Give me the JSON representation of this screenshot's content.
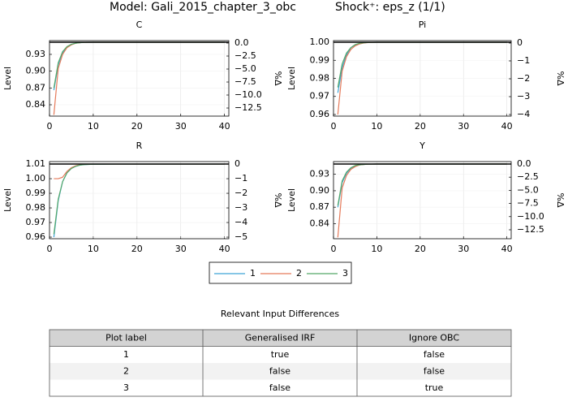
{
  "header": {
    "model": "Model: Gali_2015_chapter_3_obc",
    "shock": "Shock⁺: eps_z  (1/1)"
  },
  "legend": [
    {
      "name": "1",
      "color": "#3da4d8"
    },
    {
      "name": "2",
      "color": "#e57a5a"
    },
    {
      "name": "3",
      "color": "#55a868"
    }
  ],
  "chart_data": [
    {
      "type": "line",
      "title": "C",
      "ylabel": "Level",
      "y2label": "%Δ",
      "x": [
        1,
        2,
        3,
        4,
        5,
        6,
        7,
        8,
        10,
        15,
        20,
        30,
        40
      ],
      "xlim": [
        0,
        41
      ],
      "xticks": [
        0,
        10,
        20,
        30,
        40
      ],
      "ylim": [
        0.8197,
        0.9546
      ],
      "yticks": [
        0.84,
        0.87,
        {
          "value": 0.9,
          "label": "0.90"
        },
        0.93
      ],
      "y2lim": [
        -14.06,
        0.47
      ],
      "y2ticks": [
        {
          "value": 0,
          "label": "0.0"
        },
        {
          "value": -2.5,
          "label": "−2.5"
        },
        {
          "value": -5,
          "label": "−5.0"
        },
        {
          "value": -7.5,
          "label": "−7.5"
        },
        {
          "value": -10,
          "label": "−10.0"
        },
        {
          "value": -12.5,
          "label": "−12.5"
        }
      ],
      "steady_state": 0.9517,
      "grid": true,
      "series": [
        {
          "values": [
            0.866,
            0.912,
            0.933,
            0.943,
            0.948,
            0.95,
            0.951,
            0.9515,
            0.9517,
            0.9517,
            0.9517,
            0.9517,
            0.9517
          ]
        },
        {
          "values": [
            0.822,
            0.905,
            0.93,
            0.942,
            0.947,
            0.95,
            0.951,
            0.9515,
            0.9517,
            0.9517,
            0.9517,
            0.9517,
            0.9517
          ]
        },
        {
          "values": [
            0.87,
            0.915,
            0.935,
            0.944,
            0.948,
            0.95,
            0.951,
            0.9515,
            0.9517,
            0.9517,
            0.9517,
            0.9517,
            0.9517
          ]
        }
      ]
    },
    {
      "type": "line",
      "title": "Pi",
      "ylabel": "Level",
      "y2label": "%Δ",
      "x": [
        1,
        2,
        3,
        4,
        5,
        6,
        7,
        8,
        10,
        15,
        20,
        30,
        40
      ],
      "xlim": [
        0,
        41
      ],
      "xticks": [
        0,
        10,
        20,
        30,
        40
      ],
      "ylim": [
        0.9591,
        1.0009
      ],
      "yticks": [
        0.96,
        0.97,
        0.98,
        0.99,
        {
          "value": 1,
          "label": "1.00"
        }
      ],
      "y2lim": [
        -4.09,
        0.136
      ],
      "y2ticks": [
        0,
        {
          "value": -1,
          "label": "−1"
        },
        {
          "value": -2,
          "label": "−2"
        },
        {
          "value": -3,
          "label": "−3"
        },
        {
          "value": -4,
          "label": "−4"
        }
      ],
      "steady_state": 1,
      "grid": true,
      "series": [
        {
          "values": [
            0.972,
            0.986,
            0.993,
            0.997,
            0.9985,
            0.9993,
            0.9997,
            0.9999,
            1,
            1,
            1,
            1,
            1
          ]
        },
        {
          "values": [
            0.96,
            0.984,
            0.992,
            0.996,
            0.998,
            0.999,
            0.9996,
            0.9998,
            1,
            1,
            1,
            1,
            1
          ]
        },
        {
          "values": [
            0.975,
            0.988,
            0.994,
            0.997,
            0.9987,
            0.9994,
            0.9997,
            0.9999,
            1,
            1,
            1,
            1,
            1
          ]
        }
      ]
    },
    {
      "type": "line",
      "title": "R",
      "ylabel": "Level",
      "y2label": "%Δ",
      "x": [
        1,
        2,
        3,
        4,
        5,
        6,
        7,
        8,
        10,
        15,
        20,
        30,
        40
      ],
      "xlim": [
        0,
        41
      ],
      "xticks": [
        0,
        10,
        20,
        30,
        40
      ],
      "ylim": [
        0.9589,
        1.0117
      ],
      "yticks": [
        0.96,
        0.97,
        0.98,
        0.99,
        {
          "value": 1,
          "label": "1.00"
        },
        1.01
      ],
      "y2lim": [
        -5.11,
        0.17
      ],
      "y2ticks": [
        0,
        {
          "value": -1,
          "label": "−1"
        },
        {
          "value": -2,
          "label": "−2"
        },
        {
          "value": -3,
          "label": "−3"
        },
        {
          "value": -4,
          "label": "−4"
        },
        {
          "value": -5,
          "label": "−5"
        }
      ],
      "steady_state": 1.01,
      "grid": true,
      "series": [
        {
          "values": [
            0.96,
            0.985,
            0.998,
            1.004,
            1.007,
            1.0085,
            1.0093,
            1.0097,
            1.0099,
            1.01,
            1.01,
            1.01,
            1.01
          ]
        },
        {
          "values": [
            1,
            1,
            1.001,
            1.005,
            1.0075,
            1.0088,
            1.0095,
            1.0098,
            1.01,
            1.01,
            1.01,
            1.01,
            1.01
          ]
        },
        {
          "values": [
            0.962,
            0.986,
            0.998,
            1.004,
            1.007,
            1.0085,
            1.0093,
            1.0097,
            1.0099,
            1.01,
            1.01,
            1.01,
            1.01
          ]
        }
      ]
    },
    {
      "type": "line",
      "title": "Y",
      "ylabel": "Level",
      "y2label": "%Δ",
      "x": [
        1,
        2,
        3,
        4,
        5,
        6,
        7,
        8,
        10,
        15,
        20,
        30,
        40
      ],
      "xlim": [
        0,
        41
      ],
      "xticks": [
        0,
        10,
        20,
        30,
        40
      ],
      "ylim": [
        0.8125,
        0.9532
      ],
      "yticks": [
        0.84,
        0.87,
        {
          "value": 0.9,
          "label": "0.90"
        },
        0.93
      ],
      "y2lim": [
        -14.2,
        0.46
      ],
      "y2ticks": [
        {
          "value": 0,
          "label": "0.0"
        },
        {
          "value": -2.5,
          "label": "−2.5"
        },
        {
          "value": -5,
          "label": "−5.0"
        },
        {
          "value": -7.5,
          "label": "−7.5"
        },
        {
          "value": -10,
          "label": "−10.0"
        },
        {
          "value": -12.5,
          "label": "−12.5"
        }
      ],
      "steady_state": 0.9488,
      "grid": true,
      "series": [
        {
          "values": [
            0.87,
            0.915,
            0.932,
            0.941,
            0.945,
            0.947,
            0.948,
            0.9485,
            0.9488,
            0.9488,
            0.9488,
            0.9488,
            0.9488
          ]
        },
        {
          "values": [
            0.815,
            0.905,
            0.928,
            0.939,
            0.944,
            0.947,
            0.948,
            0.9485,
            0.9488,
            0.9488,
            0.9488,
            0.9488,
            0.9488
          ]
        },
        {
          "values": [
            0.873,
            0.918,
            0.934,
            0.942,
            0.946,
            0.9475,
            0.948,
            0.9485,
            0.9488,
            0.9488,
            0.9488,
            0.9488,
            0.9488
          ]
        }
      ]
    }
  ],
  "table": {
    "title": "Relevant Input Differences",
    "header": [
      "Plot label",
      "Generalised IRF",
      "Ignore OBC"
    ],
    "rows": [
      [
        "1",
        "true",
        "false"
      ],
      [
        "2",
        "false",
        "false"
      ],
      [
        "3",
        "false",
        "true"
      ]
    ]
  }
}
